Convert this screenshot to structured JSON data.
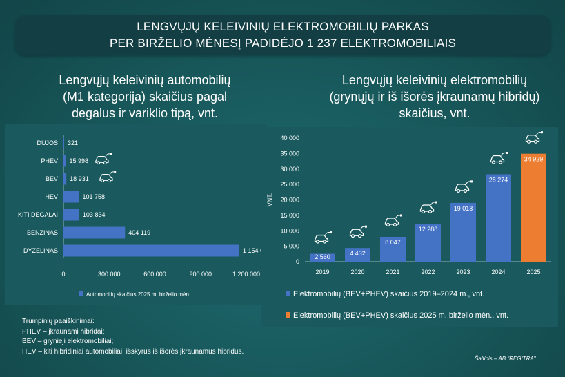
{
  "banner": {
    "line1": "LENGVŲJŲ KELEIVINIŲ ELEKTROMOBILIŲ PARKAS",
    "line2": "PER BIRŽELIO MĖNESĮ PADIDĖJO 1 237 ELEKTROMOBILIAIS"
  },
  "left_title": {
    "line1": "Lengvųjų keleivinių automobilių",
    "line2": "(M1 kategorija) skaičius pagal",
    "line3": "degalus ir variklio tipą, vnt."
  },
  "right_title": {
    "line1": "Lengvųjų keleivinių elektromobilių",
    "line2": "(grynųjų ir iš išorės įkraunamų hibridų)",
    "line3": "skaičius, vnt."
  },
  "colors": {
    "bar_blue": "#4472c4",
    "bar_orange": "#ed7d31",
    "panel": "#1a5a5e",
    "banner": "#133f44"
  },
  "chart_data": [
    {
      "type": "bar",
      "orientation": "horizontal",
      "categories": [
        "DUJOS",
        "PHEV",
        "BEV",
        "HEV",
        "KITI DEGALAI",
        "BENZINAS",
        "DYZELINAS"
      ],
      "values": [
        321,
        15998,
        18931,
        101758,
        103834,
        404119,
        1154606
      ],
      "data_labels": [
        "321",
        "15 998",
        "18 931",
        "101 758",
        "103 834",
        "404 119",
        "1 154 606"
      ],
      "xlim": [
        0,
        1200000
      ],
      "x_ticks": [
        "0",
        "300 000",
        "600 000",
        "900 000",
        "1 200 000"
      ],
      "legend": "Automobilių skaičius 2025 m. birželio mėn.",
      "legend_position": "bottom",
      "icons": [
        "car-plug-icon",
        "car-plug-icon"
      ],
      "grid": false
    },
    {
      "type": "bar",
      "orientation": "vertical",
      "categories": [
        "2019",
        "2020",
        "2021",
        "2022",
        "2023",
        "2024",
        "2025"
      ],
      "values": [
        2560,
        4432,
        8047,
        12288,
        19018,
        28274,
        34929
      ],
      "data_labels": [
        "2 560",
        "4 432",
        "8 047",
        "12 288",
        "19 018",
        "28 274",
        "34 929"
      ],
      "ylabel": "VNT.",
      "ylim": [
        0,
        40000
      ],
      "y_ticks": [
        "0",
        "5 000",
        "10 000",
        "15 000",
        "20 000",
        "25 000",
        "30 000",
        "35 000",
        "40 000"
      ],
      "series": [
        {
          "name": "Elektromobilių (BEV+PHEV) skaičius 2019–2024 m., vnt.",
          "color": "#4472c4"
        },
        {
          "name": "Elektromobilių (BEV+PHEV) skaičius 2025 m. birželio mėn., vnt.",
          "color": "#ed7d31"
        }
      ],
      "legend_position": "bottom",
      "grid": false
    }
  ],
  "abbreviations": {
    "title": "Trumpinių paaiškinimai:",
    "phev": "PHEV – įkraunami hibridai;",
    "bev": "BEV – grynieji elektromobiliai;",
    "hev": "HEV – kiti hibridiniai automobiliai, išskyrus iš išorės įkraunamus hibridus."
  },
  "source": "Šaltinis – AB \"REGITRA\""
}
